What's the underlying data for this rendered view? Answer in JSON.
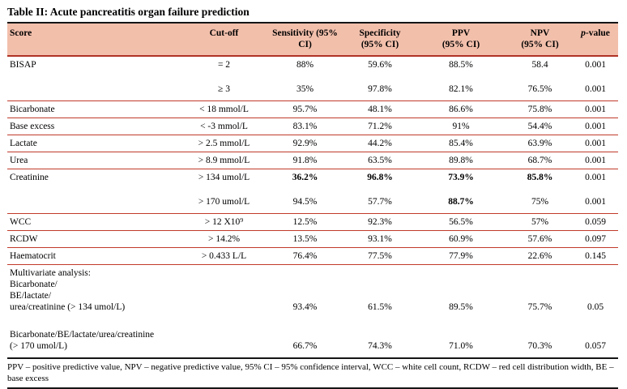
{
  "title": "Table II: Acute pancreatitis organ failure prediction",
  "colors": {
    "header_bg": "#f2bfab",
    "row_line_red": "#c03a2a",
    "table_line_black": "#151515"
  },
  "header": {
    "score": "Score",
    "cutoff": "Cut-off",
    "sensitivity": "Sensitivity (95%\nCI)",
    "specificity": "Specificity\n(95% CI)",
    "ppv": "PPV\n(95% CI)",
    "npv": "NPV\n(95% CI)",
    "pvalue_p": "p",
    "pvalue_rest": "-value"
  },
  "rows": [
    {
      "cells": [
        "BISAP",
        "= 2",
        "88%",
        "59.6%",
        "88.5%",
        "58.4",
        "0.001"
      ]
    },
    {
      "cells": [
        "",
        "≥ 3",
        "35%",
        "97.8%",
        "82.1%",
        "76.5%",
        "0.001"
      ]
    },
    {
      "cells": [
        "Bicarbonate",
        "< 18 mmol/L",
        "95.7%",
        "48.1%",
        "86.6%",
        "75.8%",
        "0.001"
      ]
    },
    {
      "cells": [
        "Base excess",
        "< -3 mmol/L",
        "83.1%",
        "71.2%",
        "91%",
        "54.4%",
        "0.001"
      ]
    },
    {
      "cells": [
        "Lactate",
        "> 2.5 mmol/L",
        "92.9%",
        "44.2%",
        "85.4%",
        "63.9%",
        "0.001"
      ]
    },
    {
      "cells": [
        "Urea",
        "> 8.9 mmol/L",
        "91.8%",
        "63.5%",
        "89.8%",
        "68.7%",
        "0.001"
      ]
    },
    {
      "cells": [
        "Creatinine",
        "> 134 umol/L",
        "36.2%",
        "96.8%",
        "73.9%",
        "85.8%",
        "0.001"
      ]
    },
    {
      "cells": [
        "",
        "> 170 umol/L",
        "94.5%",
        "57.7%",
        "88.7%",
        "75%",
        "0.001"
      ]
    },
    {
      "cells": [
        "WCC",
        "> 12 X10⁹",
        "12.5%",
        "92.3%",
        "56.5%",
        "57%",
        "0.059"
      ]
    },
    {
      "cells": [
        "RCDW",
        "> 14.2%",
        "13.5%",
        "93.1%",
        "60.9%",
        "57.6%",
        "0.097"
      ]
    },
    {
      "cells": [
        "Haematocrit",
        "> 0.433 L/L",
        "76.4%",
        "77.5%",
        "77.9%",
        "22.6%",
        "0.145"
      ]
    },
    {
      "cells": [
        "Multivariate analysis:\nBicarbonate/\nBE/lactate/\nurea/creatinine (> 134 umol/L)",
        "",
        "93.4%",
        "61.5%",
        "89.5%",
        "75.7%",
        "0.05"
      ]
    },
    {
      "cells": [
        "Bicarbonate/BE/lactate/urea/creatinine\n(> 170 umol/L)",
        "",
        "66.7%",
        "74.3%",
        "71.0%",
        "70.3%",
        "0.057"
      ]
    }
  ],
  "footnote": "PPV – positive predictive value, NPV – negative predictive value, 95% CI – 95% confidence interval, WCC – white cell count, RCDW – red cell distribution width, BE – base excess"
}
